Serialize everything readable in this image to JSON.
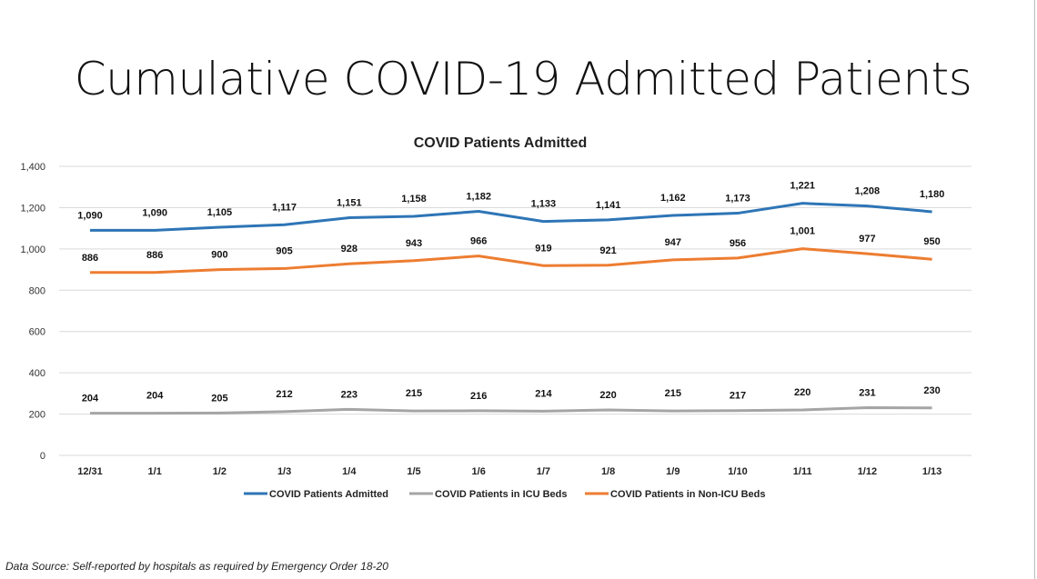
{
  "slide_title": "Cumulative COVID-19 Admitted Patients",
  "footer": "Data Source: Self-reported by hospitals as required by Emergency Order 18-20",
  "chart_data": {
    "type": "line",
    "title": "COVID Patients Admitted",
    "categories": [
      "12/31",
      "1/1",
      "1/2",
      "1/3",
      "1/4",
      "1/5",
      "1/6",
      "1/7",
      "1/8",
      "1/9",
      "1/10",
      "1/11",
      "1/12",
      "1/13"
    ],
    "ylim": [
      0,
      1400
    ],
    "yticks": [
      0,
      200,
      400,
      600,
      800,
      1000,
      1200,
      1400
    ],
    "grid": true,
    "legend_position": "bottom",
    "series": [
      {
        "name": "COVID Patients Admitted",
        "color": "#2E75B6",
        "values": [
          1090,
          1090,
          1105,
          1117,
          1151,
          1158,
          1182,
          1133,
          1141,
          1162,
          1173,
          1221,
          1208,
          1180
        ]
      },
      {
        "name": "COVID Patients in ICU Beds",
        "color": "#A5A5A5",
        "values": [
          204,
          204,
          205,
          212,
          223,
          215,
          216,
          214,
          220,
          215,
          217,
          220,
          231,
          230
        ]
      },
      {
        "name": "COVID Patients in Non-ICU Beds",
        "color": "#ED7D31",
        "values": [
          886,
          886,
          900,
          905,
          928,
          943,
          966,
          919,
          921,
          947,
          956,
          1001,
          977,
          950
        ]
      }
    ]
  }
}
